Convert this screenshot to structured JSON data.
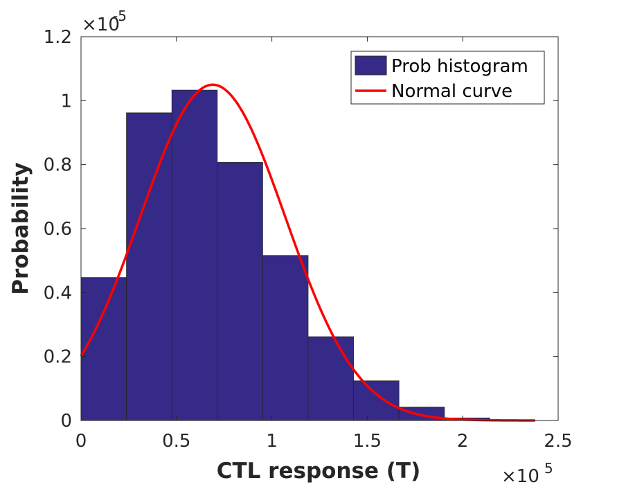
{
  "chart_data": {
    "type": "bar",
    "title": "",
    "xlabel": "CTL response (T)",
    "ylabel": "Probability",
    "xlim": [
      0,
      250000
    ],
    "ylim": [
      0,
      1.2e-05
    ],
    "x_scale_label": {
      "base": "×10",
      "exp": "5"
    },
    "y_scale_label": {
      "base": "×10",
      "exp": "-5"
    },
    "x_ticks": [
      0,
      0.5,
      1,
      1.5,
      2,
      2.5
    ],
    "x_tick_labels": [
      "0",
      "0.5",
      "1",
      "1.5",
      "2",
      "2.5"
    ],
    "y_ticks": [
      0,
      0.2,
      0.4,
      0.6,
      0.8,
      1,
      1.2
    ],
    "y_tick_labels": [
      "0",
      "0.2",
      "0.4",
      "0.6",
      "0.8",
      "1",
      "1.2"
    ],
    "histogram": {
      "name": "Prob histogram",
      "color": "#352a87",
      "bin_edges": [
        0,
        23800,
        47600,
        71400,
        95200,
        119000,
        142800,
        166600,
        190400,
        214200
      ],
      "values": [
        4.47e-06,
        9.62e-06,
        1.033e-05,
        8.07e-06,
        5.16e-06,
        2.62e-06,
        1.24e-06,
        4.2e-07,
        8e-08
      ]
    },
    "normal_curve": {
      "name": "Normal curve",
      "color": "#ff0000",
      "mean": 69000,
      "sd": 38000,
      "x_range": [
        0,
        238000
      ],
      "peak": 1.05e-05
    },
    "legend": {
      "position": "top-right",
      "entries": [
        "Prob histogram",
        "Normal curve"
      ]
    }
  }
}
